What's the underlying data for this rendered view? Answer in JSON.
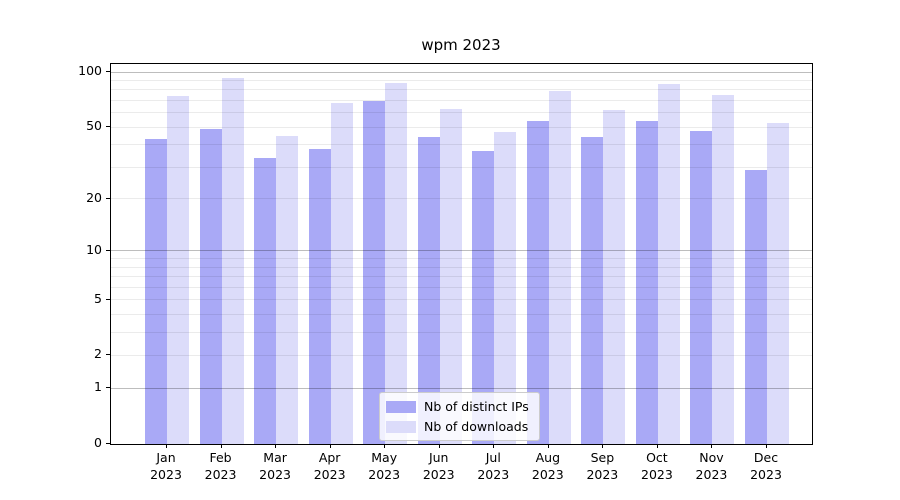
{
  "chart_data": {
    "type": "bar",
    "title": "wpm 2023",
    "categories": [
      "Jan",
      "Feb",
      "Mar",
      "Apr",
      "May",
      "Jun",
      "Jul",
      "Aug",
      "Sep",
      "Oct",
      "Nov",
      "Dec"
    ],
    "x_tick_year": "2023",
    "series": [
      {
        "name": "Nb of distinct IPs",
        "color": "#a9a9f6",
        "values": [
          43,
          49,
          34,
          38,
          70,
          44,
          37,
          54,
          44,
          54,
          48,
          29
        ]
      },
      {
        "name": "Nb of downloads",
        "color": "#dcdcfa",
        "values": [
          74,
          93,
          45,
          68,
          87,
          63,
          47,
          79,
          62,
          86,
          75,
          53
        ]
      }
    ],
    "y_scale": "log1p",
    "ylim": [
      0,
      110
    ],
    "y_ticks_labeled": [
      0,
      1,
      2,
      5,
      10,
      20,
      50,
      100
    ],
    "y_gridlines_major": [
      1,
      10,
      100
    ],
    "y_gridlines_minor": [
      2,
      3,
      4,
      5,
      6,
      7,
      8,
      9,
      20,
      30,
      40,
      50,
      60,
      70,
      80,
      90
    ],
    "grid": true,
    "legend_position": "lower center"
  },
  "legend": {
    "items": [
      {
        "label": "Nb of distinct IPs",
        "swatch_color": "#a9a9f6"
      },
      {
        "label": "Nb of downloads",
        "swatch_color": "#dcdcfa"
      }
    ]
  },
  "colors": {
    "background": "#ffffff",
    "axis": "#000000",
    "grid_major": "rgba(0,0,0,0.26)",
    "grid_minor": "rgba(0,0,0,0.08)",
    "bar_distinct_ips": "#a9a9f6",
    "bar_downloads": "#dcdcfa"
  }
}
